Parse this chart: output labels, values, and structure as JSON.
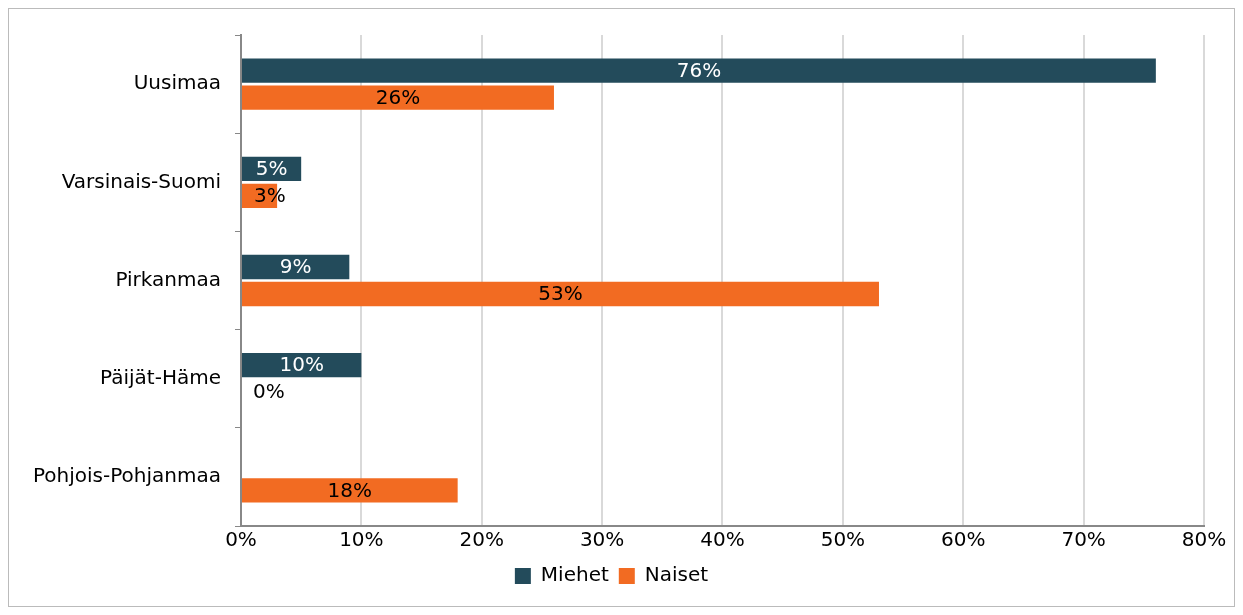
{
  "chart_data": {
    "type": "bar",
    "orientation": "horizontal",
    "categories": [
      "Uusimaa",
      "Varsinais-Suomi",
      "Pirkanmaa",
      "Päijät-Häme",
      "Pohjois-Pohjanmaa"
    ],
    "series": [
      {
        "name": "Miehet",
        "color": "#234b5b",
        "values": [
          76,
          5,
          9,
          10,
          null
        ],
        "value_labels": [
          "76%",
          "5%",
          "9%",
          "10%",
          null
        ]
      },
      {
        "name": "Naiset",
        "color": "#f26b22",
        "values": [
          26,
          3,
          53,
          0,
          18
        ],
        "value_labels": [
          "26%",
          "3%",
          "53%",
          "0%",
          "18%"
        ]
      }
    ],
    "xlim": [
      0,
      80
    ],
    "xticks": [
      {
        "value": 0,
        "label": "0%"
      },
      {
        "value": 10,
        "label": "10%"
      },
      {
        "value": 20,
        "label": "20%"
      },
      {
        "value": 30,
        "label": "30%"
      },
      {
        "value": 40,
        "label": "40%"
      },
      {
        "value": 50,
        "label": "50%"
      },
      {
        "value": 60,
        "label": "60%"
      },
      {
        "value": 70,
        "label": "70%"
      },
      {
        "value": 80,
        "label": "80%"
      }
    ],
    "grid": "x",
    "legend": "bottom"
  }
}
